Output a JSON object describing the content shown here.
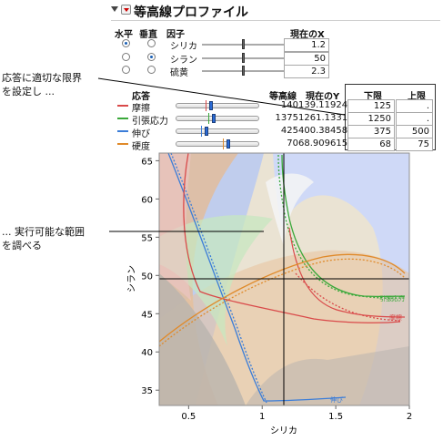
{
  "panel": {
    "title": "等高線プロファイル"
  },
  "factor_table": {
    "headers": {
      "horizontal": "水平",
      "vertical": "垂直",
      "factor": "因子",
      "current_x": "現在のX"
    },
    "rows": [
      {
        "name": "シリカ",
        "horizontal": true,
        "vertical": false,
        "value": "1.2",
        "slider_fraction": 0.5
      },
      {
        "name": "シラン",
        "horizontal": false,
        "vertical": true,
        "value": "50",
        "slider_fraction": 0.5
      },
      {
        "name": "硫黄",
        "horizontal": false,
        "vertical": false,
        "value": "2.3",
        "slider_fraction": 0.5
      }
    ]
  },
  "response_table": {
    "headers": {
      "response": "応答",
      "contour": "等高線",
      "current_y": "現在のY",
      "lower": "下限",
      "upper": "上限"
    },
    "rows": [
      {
        "name": "摩擦",
        "color": "#d94a4a",
        "contour": "140",
        "current_y": "139.11924",
        "lower": "125",
        "upper": "."
      },
      {
        "name": "引張応力",
        "color": "#3aa83a",
        "contour": "1375",
        "current_y": "1261.1331",
        "lower": "1250",
        "upper": "."
      },
      {
        "name": "伸び",
        "color": "#3b7dd8",
        "contour": "425",
        "current_y": "400.38458",
        "lower": "375",
        "upper": "500"
      },
      {
        "name": "硬度",
        "color": "#e08a2a",
        "contour": "70",
        "current_y": "68.909615",
        "lower": "68",
        "upper": "75"
      }
    ]
  },
  "annotations": {
    "limits_note": [
      "応答に適切な限界",
      "を設定し ..."
    ],
    "region_note": [
      "... 実行可能な範囲",
      "を調べる"
    ]
  },
  "chart_data": {
    "type": "contour",
    "xlabel": "シリカ",
    "ylabel": "シラン",
    "xlim": [
      0.3,
      2.0
    ],
    "ylim": [
      33,
      66
    ],
    "x_ticks": [
      "0.5",
      "1",
      "1.5",
      "2"
    ],
    "y_ticks": [
      "35",
      "40",
      "45",
      "50",
      "55",
      "60",
      "65"
    ],
    "crosshair": {
      "x": 1.2,
      "y": 50
    },
    "series": [
      {
        "name": "摩擦",
        "color": "#d94a4a",
        "contour": 140
      },
      {
        "name": "引張応力",
        "color": "#3aa83a",
        "contour": 1375
      },
      {
        "name": "伸び",
        "color": "#3b7dd8",
        "contour": 425
      },
      {
        "name": "硬度",
        "color": "#e08a2a",
        "contour": 70
      }
    ],
    "curve_labels": [
      "引張応力",
      "摩擦",
      "伸び"
    ]
  }
}
